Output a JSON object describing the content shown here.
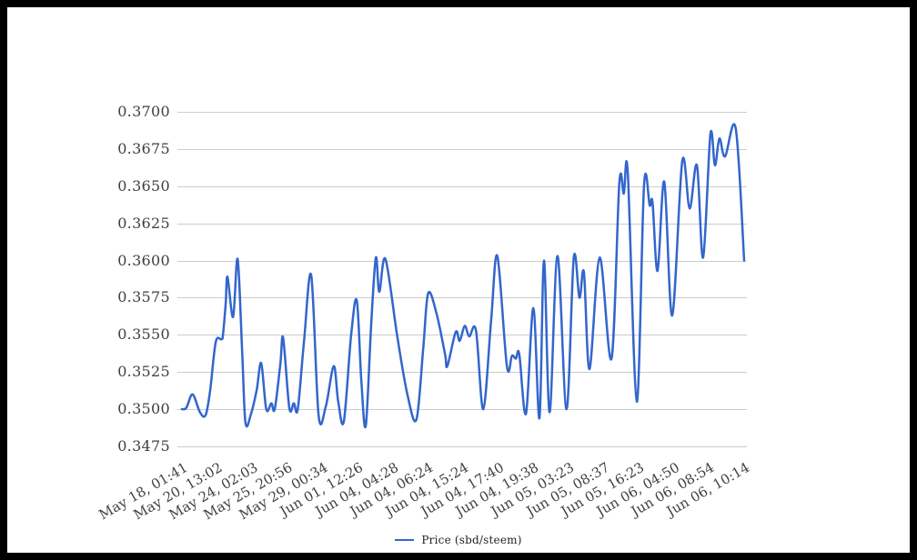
{
  "frame": {
    "background": "#ffffff",
    "border_color": "#000000"
  },
  "chart_data": {
    "type": "line",
    "title": "",
    "xlabel": "",
    "ylabel": "",
    "legend": {
      "position": "bottom",
      "label": "Price (sbd/steem)"
    },
    "series_name": "Price (sbd/steem)",
    "line_color": "#3366cc",
    "grid_color": "#cccccc",
    "axis_text_color": "#3f3f3f",
    "grid": true,
    "ylim": [
      0.3475,
      0.37
    ],
    "y_tick_labels": [
      "0.3700",
      "0.3675",
      "0.3650",
      "0.3625",
      "0.3600",
      "0.3575",
      "0.3550",
      "0.3525",
      "0.3500",
      "0.3475"
    ],
    "x_tick_labels": [
      "May 18, 01:41",
      "May 20, 13:02",
      "May 24, 02:03",
      "May 25, 20:56",
      "May 29, 00:34",
      "Jun 01, 12:26",
      "Jun 04, 04:28",
      "Jun 04, 06:24",
      "Jun 04, 15:24",
      "Jun 04, 17:40",
      "Jun 04, 19:38",
      "Jun 05, 03:23",
      "Jun 05, 08:37",
      "Jun 05, 16:23",
      "Jun 06, 04:50",
      "Jun 06, 08:54",
      "Jun 06, 10:14"
    ],
    "points_format": "[x_fraction_of_axis, price_sbd_per_steem]",
    "points": [
      [
        0.0,
        0.35
      ],
      [
        0.008,
        0.3501
      ],
      [
        0.019,
        0.351
      ],
      [
        0.032,
        0.3498
      ],
      [
        0.042,
        0.3496
      ],
      [
        0.05,
        0.3512
      ],
      [
        0.06,
        0.3545
      ],
      [
        0.07,
        0.3547
      ],
      [
        0.073,
        0.355
      ],
      [
        0.078,
        0.3572
      ],
      [
        0.081,
        0.3589
      ],
      [
        0.091,
        0.3562
      ],
      [
        0.099,
        0.3601
      ],
      [
        0.107,
        0.354
      ],
      [
        0.113,
        0.3491
      ],
      [
        0.123,
        0.3497
      ],
      [
        0.133,
        0.3513
      ],
      [
        0.141,
        0.3531
      ],
      [
        0.15,
        0.35
      ],
      [
        0.159,
        0.3504
      ],
      [
        0.165,
        0.35
      ],
      [
        0.175,
        0.353
      ],
      [
        0.18,
        0.3548
      ],
      [
        0.191,
        0.3501
      ],
      [
        0.199,
        0.3504
      ],
      [
        0.206,
        0.35
      ],
      [
        0.217,
        0.3545
      ],
      [
        0.23,
        0.359
      ],
      [
        0.243,
        0.3496
      ],
      [
        0.256,
        0.3502
      ],
      [
        0.27,
        0.3529
      ],
      [
        0.278,
        0.3505
      ],
      [
        0.288,
        0.3492
      ],
      [
        0.301,
        0.355
      ],
      [
        0.311,
        0.3573
      ],
      [
        0.319,
        0.352
      ],
      [
        0.327,
        0.3489
      ],
      [
        0.337,
        0.356
      ],
      [
        0.345,
        0.3602
      ],
      [
        0.351,
        0.3579
      ],
      [
        0.362,
        0.3601
      ],
      [
        0.383,
        0.3549
      ],
      [
        0.401,
        0.351
      ],
      [
        0.417,
        0.3493
      ],
      [
        0.429,
        0.354
      ],
      [
        0.438,
        0.3578
      ],
      [
        0.453,
        0.3564
      ],
      [
        0.468,
        0.3537
      ],
      [
        0.472,
        0.3529
      ],
      [
        0.487,
        0.3552
      ],
      [
        0.494,
        0.3546
      ],
      [
        0.503,
        0.3556
      ],
      [
        0.511,
        0.3549
      ],
      [
        0.523,
        0.3553
      ],
      [
        0.536,
        0.35
      ],
      [
        0.55,
        0.356
      ],
      [
        0.561,
        0.3603
      ],
      [
        0.578,
        0.3529
      ],
      [
        0.587,
        0.3536
      ],
      [
        0.594,
        0.3534
      ],
      [
        0.6,
        0.3537
      ],
      [
        0.612,
        0.3497
      ],
      [
        0.625,
        0.3568
      ],
      [
        0.636,
        0.3494
      ],
      [
        0.644,
        0.36
      ],
      [
        0.654,
        0.3498
      ],
      [
        0.668,
        0.3603
      ],
      [
        0.684,
        0.35
      ],
      [
        0.697,
        0.3602
      ],
      [
        0.707,
        0.3575
      ],
      [
        0.715,
        0.3592
      ],
      [
        0.725,
        0.3527
      ],
      [
        0.743,
        0.3602
      ],
      [
        0.764,
        0.3534
      ],
      [
        0.778,
        0.3652
      ],
      [
        0.786,
        0.3645
      ],
      [
        0.793,
        0.3659
      ],
      [
        0.809,
        0.3505
      ],
      [
        0.822,
        0.3651
      ],
      [
        0.832,
        0.3637
      ],
      [
        0.837,
        0.3639
      ],
      [
        0.846,
        0.3593
      ],
      [
        0.858,
        0.3653
      ],
      [
        0.872,
        0.3563
      ],
      [
        0.89,
        0.3667
      ],
      [
        0.903,
        0.3635
      ],
      [
        0.916,
        0.3664
      ],
      [
        0.927,
        0.3602
      ],
      [
        0.94,
        0.3685
      ],
      [
        0.948,
        0.3664
      ],
      [
        0.956,
        0.3682
      ],
      [
        0.966,
        0.367
      ],
      [
        0.985,
        0.3689
      ],
      [
        1.0,
        0.36
      ]
    ]
  }
}
